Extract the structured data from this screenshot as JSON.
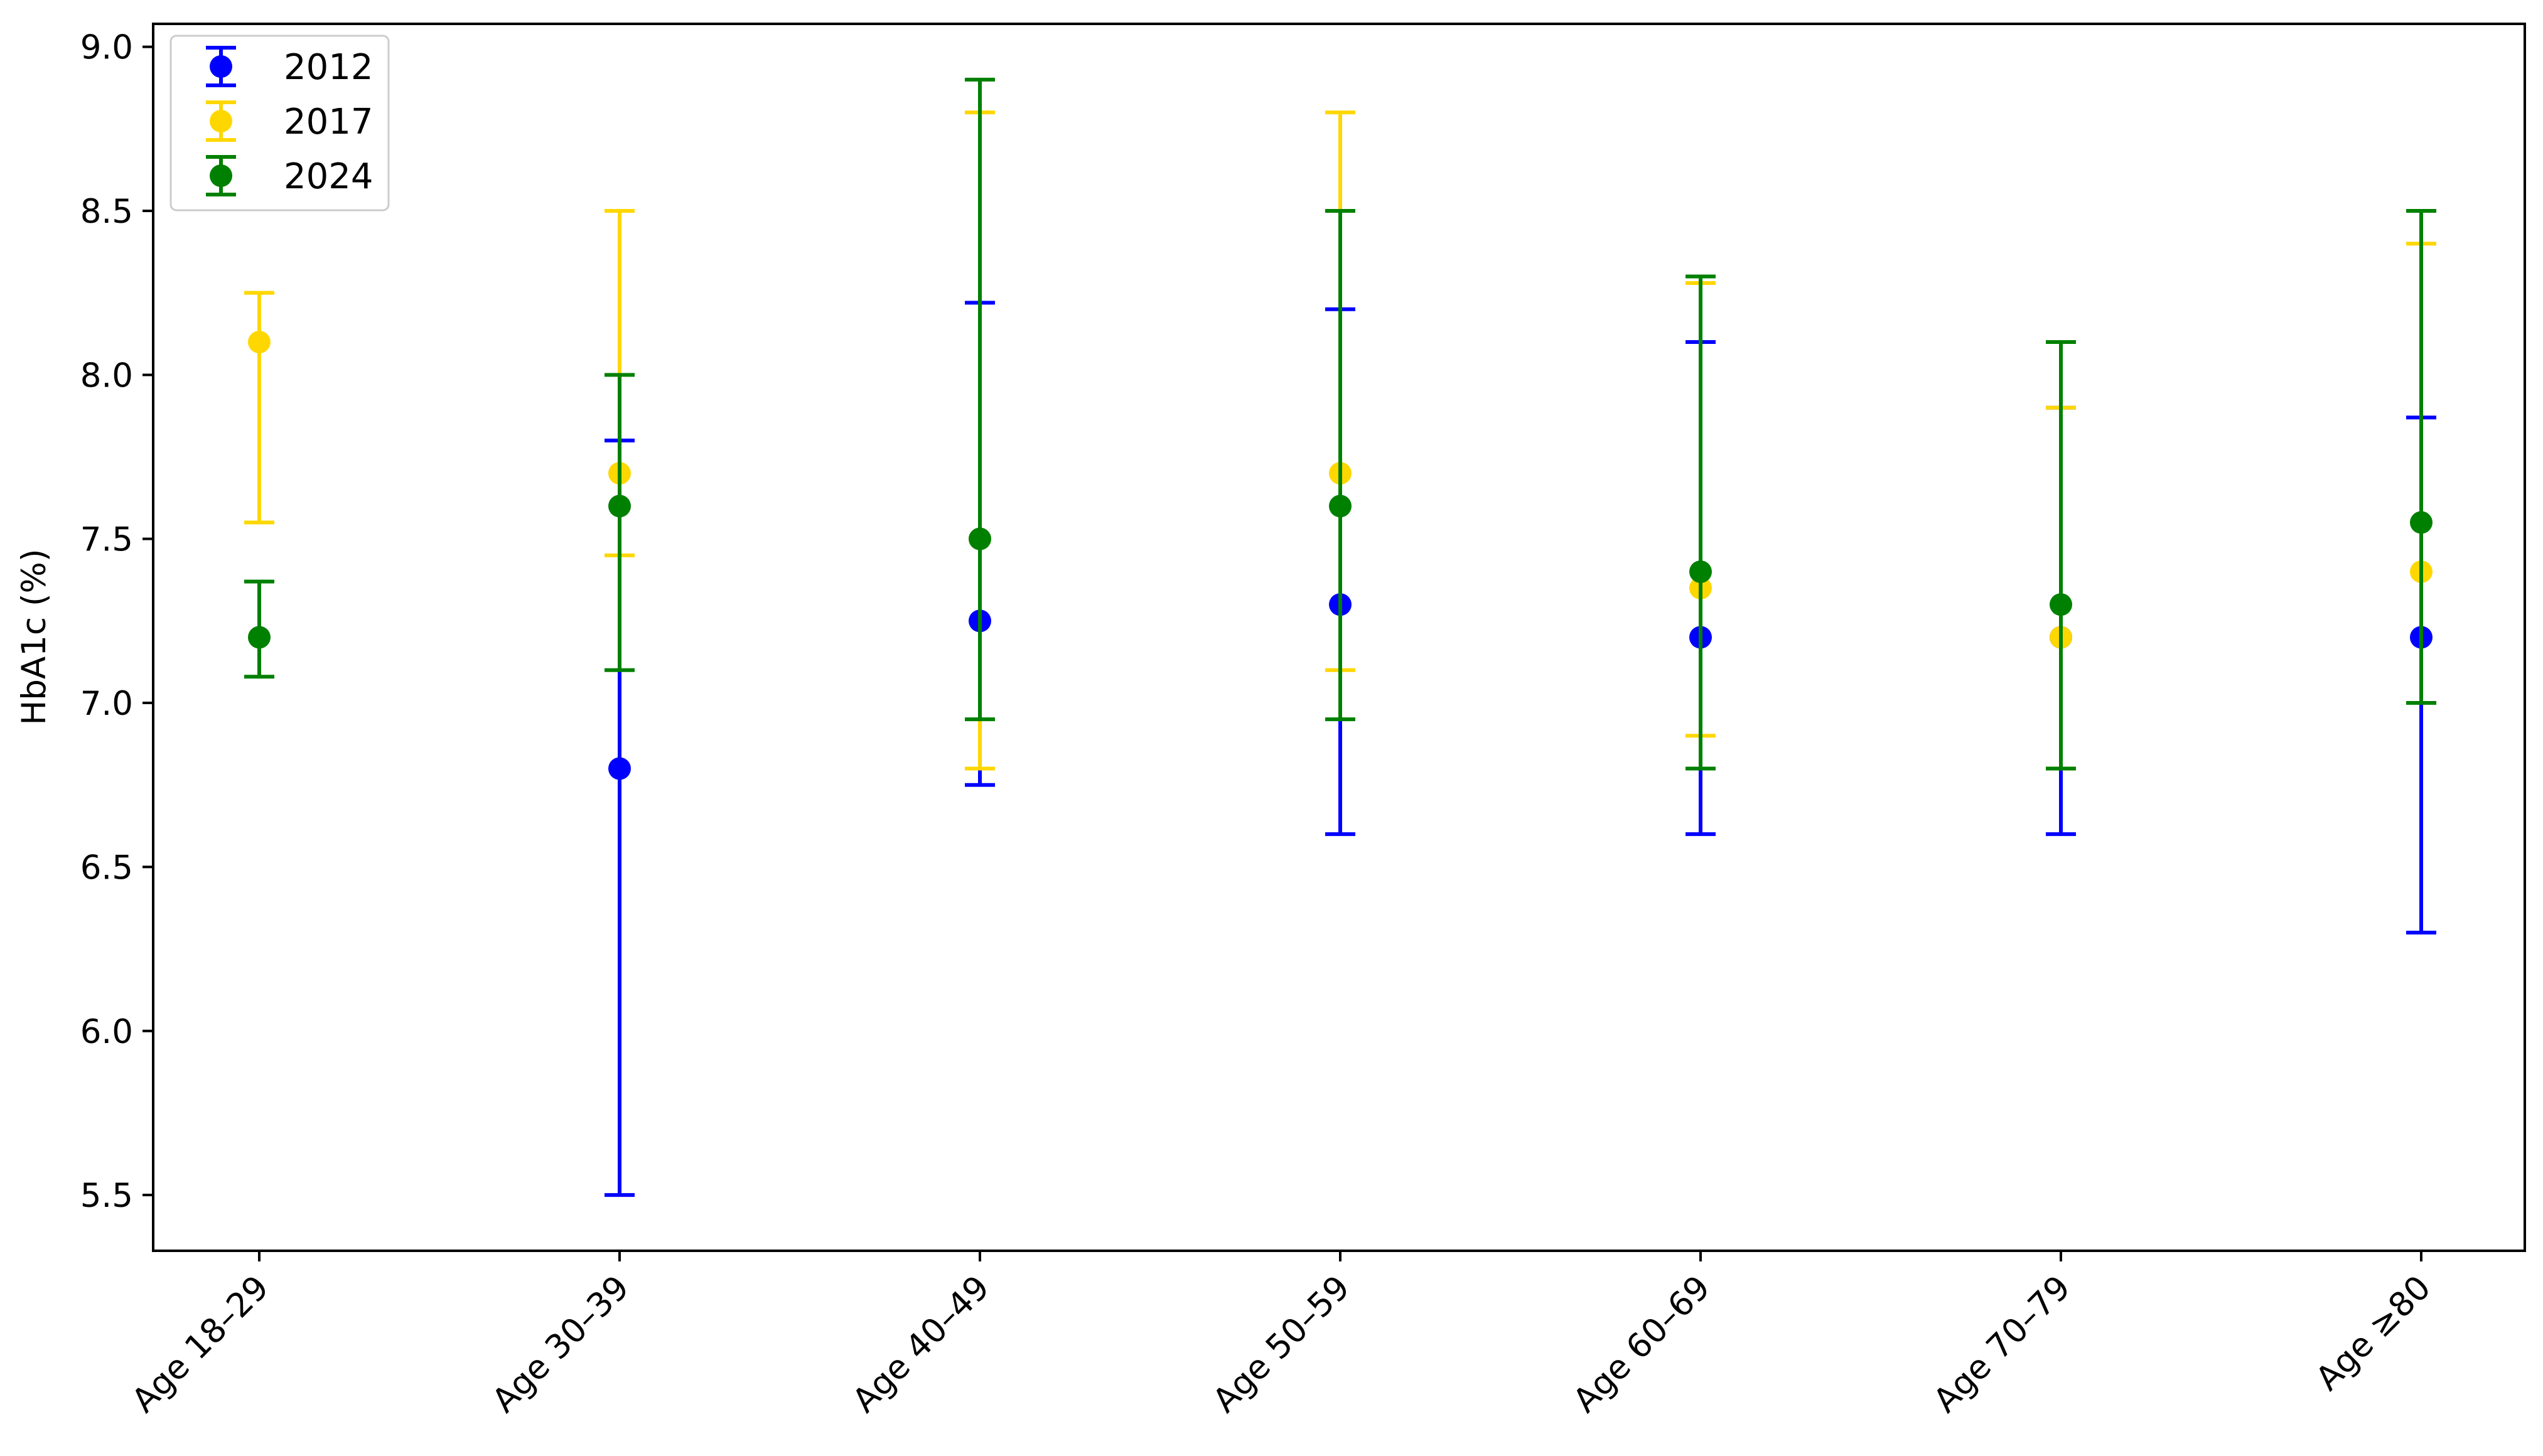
{
  "chart_data": {
    "type": "scatter",
    "subtype": "errorbar",
    "title": "",
    "xlabel": "",
    "ylabel": "HbA1c (%)",
    "categories": [
      "Age 18–29",
      "Age 30–39",
      "Age 40–49",
      "Age 50–59",
      "Age 60–69",
      "Age 70–79",
      "Age ≥80"
    ],
    "ylim": [
      5.33,
      9.07
    ],
    "yticks": [
      "5.5",
      "6.0",
      "6.5",
      "7.0",
      "7.5",
      "8.0",
      "8.5",
      "9.0"
    ],
    "grid": false,
    "legend_position": "top-left",
    "series": [
      {
        "name": "2012",
        "color": "#0000ff",
        "points": [
          null,
          {
            "y": 6.8,
            "low": 5.5,
            "high": 7.8
          },
          {
            "y": 7.25,
            "low": 6.75,
            "high": 8.22
          },
          {
            "y": 7.3,
            "low": 6.6,
            "high": 8.2
          },
          {
            "y": 7.2,
            "low": 6.6,
            "high": 8.1
          },
          {
            "y": 7.2,
            "low": 6.6,
            "high": 7.9
          },
          {
            "y": 7.2,
            "low": 6.3,
            "high": 7.87
          }
        ]
      },
      {
        "name": "2017",
        "color": "#ffd700",
        "points": [
          {
            "y": 8.1,
            "low": 7.55,
            "high": 8.25
          },
          {
            "y": 7.7,
            "low": 7.45,
            "high": 8.5
          },
          {
            "y": 7.5,
            "low": 6.8,
            "high": 8.8
          },
          {
            "y": 7.7,
            "low": 7.1,
            "high": 8.8
          },
          {
            "y": 7.35,
            "low": 6.9,
            "high": 8.28
          },
          {
            "y": 7.2,
            "low": 6.8,
            "high": 7.9
          },
          {
            "y": 7.4,
            "low": 7.0,
            "high": 8.4
          }
        ]
      },
      {
        "name": "2024",
        "color": "#008000",
        "points": [
          {
            "y": 7.2,
            "low": 7.08,
            "high": 7.37
          },
          {
            "y": 7.6,
            "low": 7.1,
            "high": 8.0
          },
          {
            "y": 7.5,
            "low": 6.95,
            "high": 8.9
          },
          {
            "y": 7.6,
            "low": 6.95,
            "high": 8.5
          },
          {
            "y": 7.4,
            "low": 6.8,
            "high": 8.3
          },
          {
            "y": 7.3,
            "low": 6.8,
            "high": 8.1
          },
          {
            "y": 7.55,
            "low": 7.0,
            "high": 8.5
          }
        ]
      }
    ]
  }
}
